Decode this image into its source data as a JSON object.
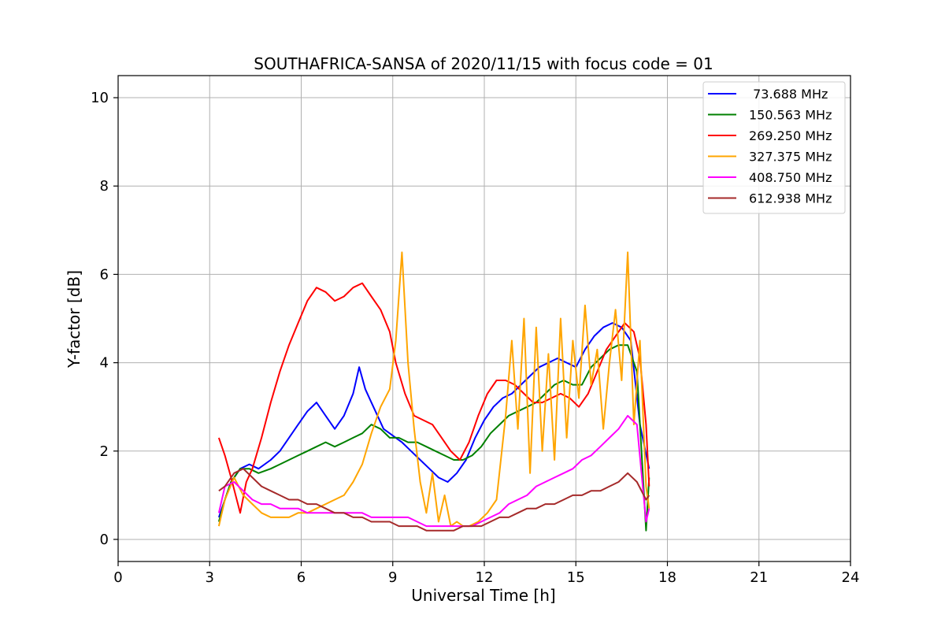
{
  "chart_data": {
    "type": "line",
    "title": "SOUTHAFRICA-SANSA of 2020/11/15 with focus code = 01",
    "xlabel": "Universal Time [h]",
    "ylabel": "Y-factor [dB]",
    "xlim": [
      0,
      24
    ],
    "ylim": [
      -0.5,
      10.5
    ],
    "xticks": [
      0,
      3,
      6,
      9,
      12,
      15,
      18,
      21,
      24
    ],
    "yticks": [
      0,
      2,
      4,
      6,
      8,
      10
    ],
    "grid": true,
    "legend_position": "top-right",
    "series": [
      {
        "name": " 73.688 MHz",
        "color": "#0000ff",
        "x": [
          3.3,
          3.5,
          3.7,
          4.0,
          4.3,
          4.6,
          5.0,
          5.3,
          5.6,
          5.9,
          6.2,
          6.5,
          6.8,
          7.1,
          7.4,
          7.7,
          7.9,
          8.1,
          8.3,
          8.5,
          8.7,
          8.9,
          9.1,
          9.3,
          9.6,
          9.9,
          10.2,
          10.5,
          10.8,
          11.1,
          11.4,
          11.7,
          12.0,
          12.3,
          12.6,
          12.9,
          13.2,
          13.5,
          13.8,
          14.1,
          14.4,
          14.7,
          15.0,
          15.3,
          15.6,
          15.9,
          16.2,
          16.5,
          16.8,
          17.1,
          17.4
        ],
        "y": [
          0.5,
          0.9,
          1.3,
          1.6,
          1.7,
          1.6,
          1.8,
          2.0,
          2.3,
          2.6,
          2.9,
          3.1,
          2.8,
          2.5,
          2.8,
          3.3,
          3.9,
          3.4,
          3.1,
          2.8,
          2.5,
          2.4,
          2.3,
          2.2,
          2.0,
          1.8,
          1.6,
          1.4,
          1.3,
          1.5,
          1.8,
          2.3,
          2.7,
          3.0,
          3.2,
          3.3,
          3.5,
          3.7,
          3.9,
          4.0,
          4.1,
          4.0,
          3.9,
          4.3,
          4.6,
          4.8,
          4.9,
          4.8,
          4.5,
          2.6,
          1.6
        ]
      },
      {
        "name": "150.563 MHz",
        "color": "#008000",
        "x": [
          3.3,
          3.5,
          3.7,
          4.0,
          4.3,
          4.6,
          5.0,
          5.3,
          5.6,
          5.9,
          6.2,
          6.5,
          6.8,
          7.1,
          7.4,
          7.7,
          8.0,
          8.3,
          8.6,
          8.9,
          9.2,
          9.5,
          9.8,
          10.1,
          10.4,
          10.7,
          11.0,
          11.3,
          11.6,
          11.9,
          12.2,
          12.5,
          12.8,
          13.1,
          13.4,
          13.7,
          14.0,
          14.3,
          14.6,
          14.9,
          15.2,
          15.5,
          15.8,
          16.1,
          16.4,
          16.7,
          17.0,
          17.3,
          17.4
        ],
        "y": [
          0.4,
          0.9,
          1.3,
          1.6,
          1.6,
          1.5,
          1.6,
          1.7,
          1.8,
          1.9,
          2.0,
          2.1,
          2.2,
          2.1,
          2.2,
          2.3,
          2.4,
          2.6,
          2.5,
          2.3,
          2.3,
          2.2,
          2.2,
          2.1,
          2.0,
          1.9,
          1.8,
          1.8,
          1.9,
          2.1,
          2.4,
          2.6,
          2.8,
          2.9,
          3.0,
          3.1,
          3.3,
          3.5,
          3.6,
          3.5,
          3.5,
          3.9,
          4.1,
          4.3,
          4.4,
          4.4,
          3.8,
          0.2,
          1.4
        ]
      },
      {
        "name": "269.250 MHz",
        "color": "#ff0000",
        "x": [
          3.3,
          3.5,
          3.7,
          4.0,
          4.2,
          4.4,
          4.7,
          5.0,
          5.3,
          5.6,
          5.9,
          6.2,
          6.5,
          6.8,
          7.1,
          7.4,
          7.7,
          8.0,
          8.3,
          8.6,
          8.9,
          9.1,
          9.4,
          9.7,
          10.0,
          10.3,
          10.6,
          10.9,
          11.2,
          11.5,
          11.8,
          12.1,
          12.4,
          12.7,
          13.0,
          13.3,
          13.6,
          13.9,
          14.2,
          14.5,
          14.8,
          15.1,
          15.4,
          15.7,
          16.0,
          16.3,
          16.6,
          16.9,
          17.1,
          17.3,
          17.4
        ],
        "y": [
          2.3,
          1.9,
          1.4,
          0.6,
          1.3,
          1.6,
          2.3,
          3.1,
          3.8,
          4.4,
          4.9,
          5.4,
          5.7,
          5.6,
          5.4,
          5.5,
          5.7,
          5.8,
          5.5,
          5.2,
          4.7,
          4.0,
          3.3,
          2.8,
          2.7,
          2.6,
          2.3,
          2.0,
          1.8,
          2.2,
          2.8,
          3.3,
          3.6,
          3.6,
          3.5,
          3.3,
          3.1,
          3.1,
          3.2,
          3.3,
          3.2,
          3.0,
          3.3,
          3.8,
          4.3,
          4.6,
          4.9,
          4.7,
          4.1,
          2.6,
          1.2
        ]
      },
      {
        "name": "327.375 MHz",
        "color": "#ffa500",
        "x": [
          3.3,
          3.5,
          3.8,
          4.1,
          4.4,
          4.7,
          5.0,
          5.3,
          5.6,
          5.9,
          6.2,
          6.5,
          6.8,
          7.1,
          7.4,
          7.7,
          8.0,
          8.3,
          8.6,
          8.9,
          9.1,
          9.3,
          9.5,
          9.7,
          9.9,
          10.1,
          10.3,
          10.5,
          10.7,
          10.9,
          11.1,
          11.3,
          11.5,
          11.8,
          12.1,
          12.4,
          12.7,
          12.9,
          13.1,
          13.3,
          13.5,
          13.7,
          13.9,
          14.1,
          14.3,
          14.5,
          14.7,
          14.9,
          15.1,
          15.3,
          15.5,
          15.7,
          15.9,
          16.1,
          16.3,
          16.5,
          16.7,
          16.9,
          17.1,
          17.3,
          17.4
        ],
        "y": [
          0.3,
          0.9,
          1.4,
          1.0,
          0.8,
          0.6,
          0.5,
          0.5,
          0.5,
          0.6,
          0.6,
          0.7,
          0.8,
          0.9,
          1.0,
          1.3,
          1.7,
          2.4,
          3.0,
          3.4,
          4.5,
          6.5,
          4.0,
          2.5,
          1.3,
          0.6,
          1.5,
          0.4,
          1.0,
          0.3,
          0.4,
          0.3,
          0.3,
          0.4,
          0.6,
          0.9,
          2.8,
          4.5,
          2.5,
          5.0,
          1.5,
          4.8,
          2.0,
          4.2,
          1.8,
          5.0,
          2.3,
          4.5,
          3.2,
          5.3,
          3.5,
          4.3,
          2.5,
          4.0,
          5.2,
          3.6,
          6.5,
          2.6,
          4.5,
          1.2,
          0.7
        ]
      },
      {
        "name": "408.750 MHz",
        "color": "#ff00ff",
        "x": [
          3.3,
          3.5,
          3.8,
          4.1,
          4.4,
          4.7,
          5.0,
          5.3,
          5.6,
          5.9,
          6.2,
          6.5,
          6.8,
          7.1,
          7.4,
          7.7,
          8.0,
          8.3,
          8.6,
          8.9,
          9.2,
          9.5,
          9.8,
          10.1,
          10.4,
          10.7,
          11.0,
          11.3,
          11.6,
          11.9,
          12.2,
          12.5,
          12.8,
          13.1,
          13.4,
          13.7,
          14.0,
          14.3,
          14.6,
          14.9,
          15.2,
          15.5,
          15.8,
          16.1,
          16.4,
          16.7,
          17.0,
          17.3,
          17.4
        ],
        "y": [
          0.6,
          1.2,
          1.3,
          1.1,
          0.9,
          0.8,
          0.8,
          0.7,
          0.7,
          0.7,
          0.6,
          0.6,
          0.6,
          0.6,
          0.6,
          0.6,
          0.6,
          0.5,
          0.5,
          0.5,
          0.5,
          0.5,
          0.4,
          0.3,
          0.3,
          0.3,
          0.3,
          0.3,
          0.3,
          0.4,
          0.5,
          0.6,
          0.8,
          0.9,
          1.0,
          1.2,
          1.3,
          1.4,
          1.5,
          1.6,
          1.8,
          1.9,
          2.1,
          2.3,
          2.5,
          2.8,
          2.6,
          0.4,
          0.7
        ]
      },
      {
        "name": "612.938 MHz",
        "color": "#a52a2a",
        "x": [
          3.3,
          3.5,
          3.8,
          4.1,
          4.4,
          4.7,
          5.0,
          5.3,
          5.6,
          5.9,
          6.2,
          6.5,
          6.8,
          7.1,
          7.4,
          7.7,
          8.0,
          8.3,
          8.6,
          8.9,
          9.2,
          9.5,
          9.8,
          10.1,
          10.4,
          10.7,
          11.0,
          11.3,
          11.6,
          11.9,
          12.2,
          12.5,
          12.8,
          13.1,
          13.4,
          13.7,
          14.0,
          14.3,
          14.6,
          14.9,
          15.2,
          15.5,
          15.8,
          16.1,
          16.4,
          16.7,
          17.0,
          17.3,
          17.4
        ],
        "y": [
          1.1,
          1.2,
          1.5,
          1.6,
          1.4,
          1.2,
          1.1,
          1.0,
          0.9,
          0.9,
          0.8,
          0.8,
          0.7,
          0.6,
          0.6,
          0.5,
          0.5,
          0.4,
          0.4,
          0.4,
          0.3,
          0.3,
          0.3,
          0.2,
          0.2,
          0.2,
          0.2,
          0.3,
          0.3,
          0.3,
          0.4,
          0.5,
          0.5,
          0.6,
          0.7,
          0.7,
          0.8,
          0.8,
          0.9,
          1.0,
          1.0,
          1.1,
          1.1,
          1.2,
          1.3,
          1.5,
          1.3,
          0.9,
          1.0
        ]
      }
    ]
  }
}
